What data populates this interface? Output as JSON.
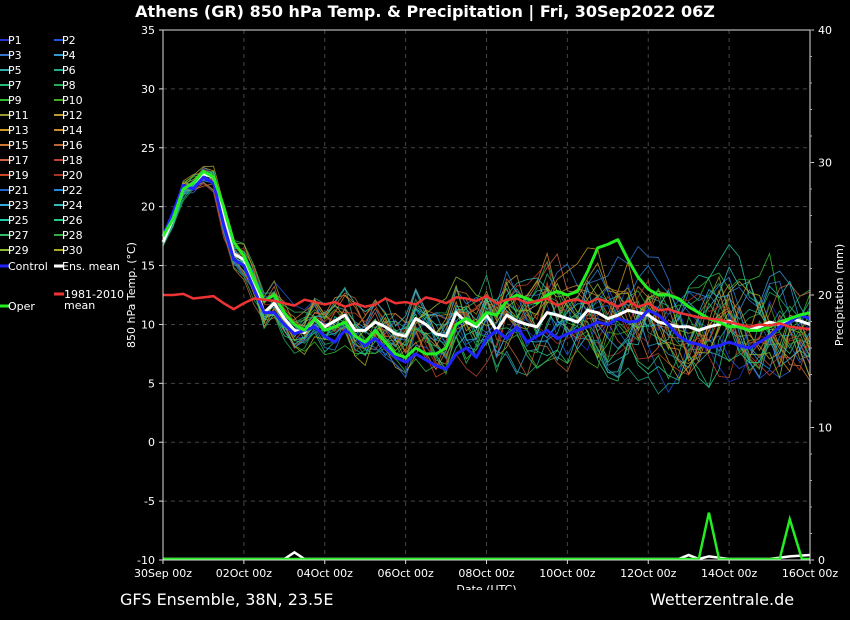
{
  "title": "Athens  (GR)  850 hPa Temp. & Precipitation | Fri, 30Sep2022 06Z",
  "footer": {
    "left": "GFS Ensemble, 38N, 23.5E",
    "right": "Wetterzentrale.de"
  },
  "chart_data": {
    "type": "line",
    "xlabel": "Date (UTC)",
    "ylabel": "850 hPa Temp. (°C)",
    "y2label": "Precipitation (mm)",
    "ylim": [
      -10,
      35
    ],
    "y2lim": [
      0,
      40
    ],
    "xlim": [
      0,
      16
    ],
    "x_ticks": [
      {
        "value": 0,
        "label": "30Sep 00z"
      },
      {
        "value": 2,
        "label": "02Oct 00z"
      },
      {
        "value": 4,
        "label": "04Oct 00z"
      },
      {
        "value": 6,
        "label": "06Oct 00z"
      },
      {
        "value": 8,
        "label": "08Oct 00z"
      },
      {
        "value": 10,
        "label": "10Oct 00z"
      },
      {
        "value": 12,
        "label": "12Oct 00z"
      },
      {
        "value": 14,
        "label": "14Oct 00z"
      },
      {
        "value": 16,
        "label": "16Oct 00z"
      }
    ],
    "y_ticks": [
      "-10",
      "-5",
      "0",
      "5",
      "10",
      "15",
      "20",
      "25",
      "30",
      "35"
    ],
    "y2_ticks": [
      "0",
      "10",
      "20",
      "30",
      "40"
    ],
    "grid": true,
    "legend_position": "left",
    "legend": [
      {
        "label": "P1",
        "color": "#2233cc"
      },
      {
        "label": "P2",
        "color": "#2255dd"
      },
      {
        "label": "P3",
        "color": "#3377cc"
      },
      {
        "label": "P4",
        "color": "#3399cc"
      },
      {
        "label": "P5",
        "color": "#33aaaa"
      },
      {
        "label": "P6",
        "color": "#22aa88"
      },
      {
        "label": "P7",
        "color": "#22bb77"
      },
      {
        "label": "P8",
        "color": "#22aa55"
      },
      {
        "label": "P9",
        "color": "#33bb33"
      },
      {
        "label": "P10",
        "color": "#44aa22"
      },
      {
        "label": "P11",
        "color": "#999933"
      },
      {
        "label": "P12",
        "color": "#bb9933"
      },
      {
        "label": "P13",
        "color": "#cc9922"
      },
      {
        "label": "P14",
        "color": "#cc8833"
      },
      {
        "label": "P15",
        "color": "#cc7733"
      },
      {
        "label": "P16",
        "color": "#bb6633"
      },
      {
        "label": "P17",
        "color": "#cc6644"
      },
      {
        "label": "P18",
        "color": "#bb4433"
      },
      {
        "label": "P19",
        "color": "#cc4422"
      },
      {
        "label": "P20",
        "color": "#aa3322"
      },
      {
        "label": "P21",
        "color": "#2266cc"
      },
      {
        "label": "P22",
        "color": "#2288dd"
      },
      {
        "label": "P23",
        "color": "#33aadd"
      },
      {
        "label": "P24",
        "color": "#33bbbb"
      },
      {
        "label": "P25",
        "color": "#22ccaa"
      },
      {
        "label": "P26",
        "color": "#22cc88"
      },
      {
        "label": "P27",
        "color": "#33bb66"
      },
      {
        "label": "P28",
        "color": "#33aa44"
      },
      {
        "label": "P29",
        "color": "#88bb33"
      },
      {
        "label": "P30",
        "color": "#aaaa22"
      },
      {
        "label": "Control",
        "color": "#2222ff"
      },
      {
        "label": "Ens. mean",
        "color": "#ffffff"
      },
      {
        "label": "1981-2010 mean",
        "color": "#ee3333"
      },
      {
        "label": "Oper",
        "color": "#22ee22"
      }
    ],
    "series": [
      {
        "name": "Ens. mean",
        "color": "#ffffff",
        "x": [
          0,
          0.25,
          0.5,
          0.75,
          1,
          1.25,
          1.5,
          1.75,
          2,
          2.25,
          2.5,
          2.75,
          3,
          3.25,
          3.5,
          3.75,
          4,
          4.25,
          4.5,
          4.75,
          5,
          5.25,
          5.5,
          5.75,
          6,
          6.25,
          6.5,
          6.75,
          7,
          7.25,
          7.5,
          7.75,
          8,
          8.25,
          8.5,
          8.75,
          9,
          9.25,
          9.5,
          9.75,
          10,
          10.25,
          10.5,
          10.75,
          11,
          11.25,
          11.5,
          11.75,
          12,
          12.25,
          12.5,
          12.75,
          13,
          13.25,
          13.5,
          13.75,
          14,
          14.25,
          14.5,
          14.75,
          15,
          15.25,
          15.5,
          15.75,
          16
        ],
        "y": [
          17,
          19,
          21.5,
          22,
          22.8,
          22.5,
          19,
          16,
          15.5,
          13.5,
          11,
          11.8,
          10.5,
          9.5,
          9.3,
          10.5,
          9.8,
          10.3,
          10.8,
          9.5,
          9.5,
          10.2,
          9.8,
          9.2,
          9,
          10.5,
          10,
          9.2,
          9,
          11,
          10.2,
          9.8,
          10.8,
          9.5,
          10.8,
          10.3,
          10,
          9.8,
          11,
          10.8,
          10.5,
          10.2,
          11.2,
          11,
          10.5,
          10.8,
          11.2,
          11,
          10.8,
          10.2,
          10,
          9.8,
          9.8,
          9.5,
          9.8,
          10,
          10.3,
          9.8,
          9.5,
          9.8,
          10.2,
          10,
          10.5,
          10.3,
          10
        ]
      },
      {
        "name": "Control",
        "color": "#2222ff",
        "x": [
          0,
          0.25,
          0.5,
          0.75,
          1,
          1.25,
          1.5,
          1.75,
          2,
          2.25,
          2.5,
          2.75,
          3,
          3.25,
          3.5,
          3.75,
          4,
          4.25,
          4.5,
          4.75,
          5,
          5.25,
          5.5,
          5.75,
          6,
          6.25,
          6.5,
          6.75,
          7,
          7.25,
          7.5,
          7.75,
          8,
          8.25,
          8.5,
          8.75,
          9,
          9.25,
          9.5,
          9.75,
          10,
          10.25,
          10.5,
          10.75,
          11,
          11.25,
          11.5,
          11.75,
          12,
          12.25,
          12.5,
          12.75,
          13,
          13.25,
          13.5,
          13.75,
          14,
          14.25,
          14.5,
          14.75,
          15,
          15.25,
          15.5,
          15.75,
          16
        ],
        "y": [
          17.5,
          19.5,
          21.8,
          21.5,
          22.5,
          22,
          18.5,
          15.5,
          15,
          13,
          11,
          11,
          10,
          9.2,
          9.5,
          9.8,
          9,
          8.5,
          9.5,
          9,
          8.2,
          8.8,
          8,
          7.2,
          6.8,
          7.5,
          7,
          6.5,
          6.2,
          7.5,
          8,
          7.2,
          8.8,
          9.5,
          8.8,
          9.8,
          8.5,
          9,
          9.5,
          8.8,
          9.2,
          9.5,
          9.8,
          10.2,
          10,
          10.5,
          10.2,
          10.3,
          11.2,
          10.8,
          10,
          9,
          8.5,
          8.3,
          8,
          8.2,
          8.5,
          8.2,
          8,
          8.5,
          9,
          9.8,
          10.2,
          10.8,
          10.5
        ]
      },
      {
        "name": "Oper",
        "color": "#22ee22",
        "x": [
          0,
          0.25,
          0.5,
          0.75,
          1,
          1.25,
          1.5,
          1.75,
          2,
          2.25,
          2.5,
          2.75,
          3,
          3.25,
          3.5,
          3.75,
          4,
          4.25,
          4.5,
          4.75,
          5,
          5.25,
          5.5,
          5.75,
          6,
          6.25,
          6.5,
          6.75,
          7,
          7.25,
          7.5,
          7.75,
          8,
          8.25,
          8.5,
          8.75,
          9,
          9.25,
          9.5,
          9.75,
          10,
          10.25,
          10.5,
          10.75,
          11,
          11.25,
          11.5,
          11.75,
          12,
          12.25,
          12.5,
          12.75,
          13,
          13.25,
          13.5,
          13.75,
          14,
          14.25,
          14.5,
          14.75,
          15,
          15.25,
          15.5,
          15.75,
          16
        ],
        "y": [
          17.5,
          19,
          21.5,
          22,
          23,
          22.5,
          20,
          17,
          15.8,
          13.8,
          12,
          12.5,
          11,
          10,
          9.5,
          10.5,
          9.5,
          9.8,
          10.2,
          9,
          8.5,
          9.5,
          8.5,
          7.5,
          7.2,
          8,
          7.5,
          7.5,
          8,
          10,
          10.5,
          10,
          11,
          10.8,
          12,
          12.5,
          12.2,
          11.8,
          12.5,
          12.8,
          12.5,
          12.8,
          14.5,
          16.5,
          16.8,
          17.2,
          15.5,
          14,
          13,
          12.5,
          12.5,
          12.2,
          11.5,
          11,
          10.5,
          10.2,
          9.8,
          9.8,
          9.5,
          9.5,
          9.8,
          10.2,
          10.5,
          10.8,
          11
        ]
      },
      {
        "name": "1981-2010 mean",
        "color": "#ee3333",
        "x": [
          0,
          0.25,
          0.5,
          0.75,
          1,
          1.25,
          1.5,
          1.75,
          2,
          2.25,
          2.5,
          2.75,
          3,
          3.25,
          3.5,
          3.75,
          4,
          4.25,
          4.5,
          4.75,
          5,
          5.25,
          5.5,
          5.75,
          6,
          6.25,
          6.5,
          6.75,
          7,
          7.25,
          7.5,
          7.75,
          8,
          8.25,
          8.5,
          8.75,
          9,
          9.25,
          9.5,
          9.75,
          10,
          10.25,
          10.5,
          10.75,
          11,
          11.25,
          11.5,
          11.75,
          12,
          12.25,
          12.5,
          12.75,
          13,
          13.25,
          13.5,
          13.75,
          14,
          14.25,
          14.5,
          14.75,
          15,
          15.25,
          15.5,
          15.75,
          16
        ],
        "y": [
          12.5,
          12.5,
          12.6,
          12.2,
          12.3,
          12.4,
          11.8,
          11.3,
          11.8,
          12.2,
          12.1,
          12,
          11.8,
          11.6,
          12.1,
          11.9,
          11.7,
          11.9,
          11.5,
          11.8,
          11.5,
          11.7,
          12.2,
          11.8,
          11.9,
          11.7,
          12.3,
          12.1,
          11.8,
          12.3,
          12.2,
          12,
          12.4,
          11.8,
          12.1,
          12.2,
          11.8,
          12,
          12.2,
          11.6,
          12,
          12.1,
          11.8,
          12.2,
          11.9,
          11.5,
          12,
          11.5,
          11.8,
          11.2,
          11.3,
          11,
          10.8,
          10.6,
          10.5,
          10.4,
          10.2,
          10,
          9.8,
          10,
          9.9,
          10.1,
          9.8,
          9.7,
          9.6
        ]
      }
    ],
    "precipitation": {
      "Ens. mean": {
        "x": [
          0,
          2,
          3,
          3.25,
          3.5,
          4,
          6,
          8,
          10,
          12,
          12.75,
          13,
          13.25,
          13.5,
          14,
          15,
          15.5,
          16
        ],
        "y": [
          0,
          0,
          0,
          0.5,
          0,
          0,
          0,
          0,
          0,
          0,
          0,
          0.3,
          0,
          0.2,
          0,
          0,
          0.2,
          0.3
        ]
      },
      "Oper": {
        "x": [
          0,
          12,
          12.5,
          12.8,
          13,
          13.25,
          13.5,
          13.75,
          14,
          15,
          15.25,
          15.5,
          15.8,
          16
        ],
        "y": [
          0,
          0,
          0,
          0,
          0,
          0,
          3.5,
          0,
          0,
          0,
          0,
          3,
          0,
          0
        ]
      }
    }
  }
}
